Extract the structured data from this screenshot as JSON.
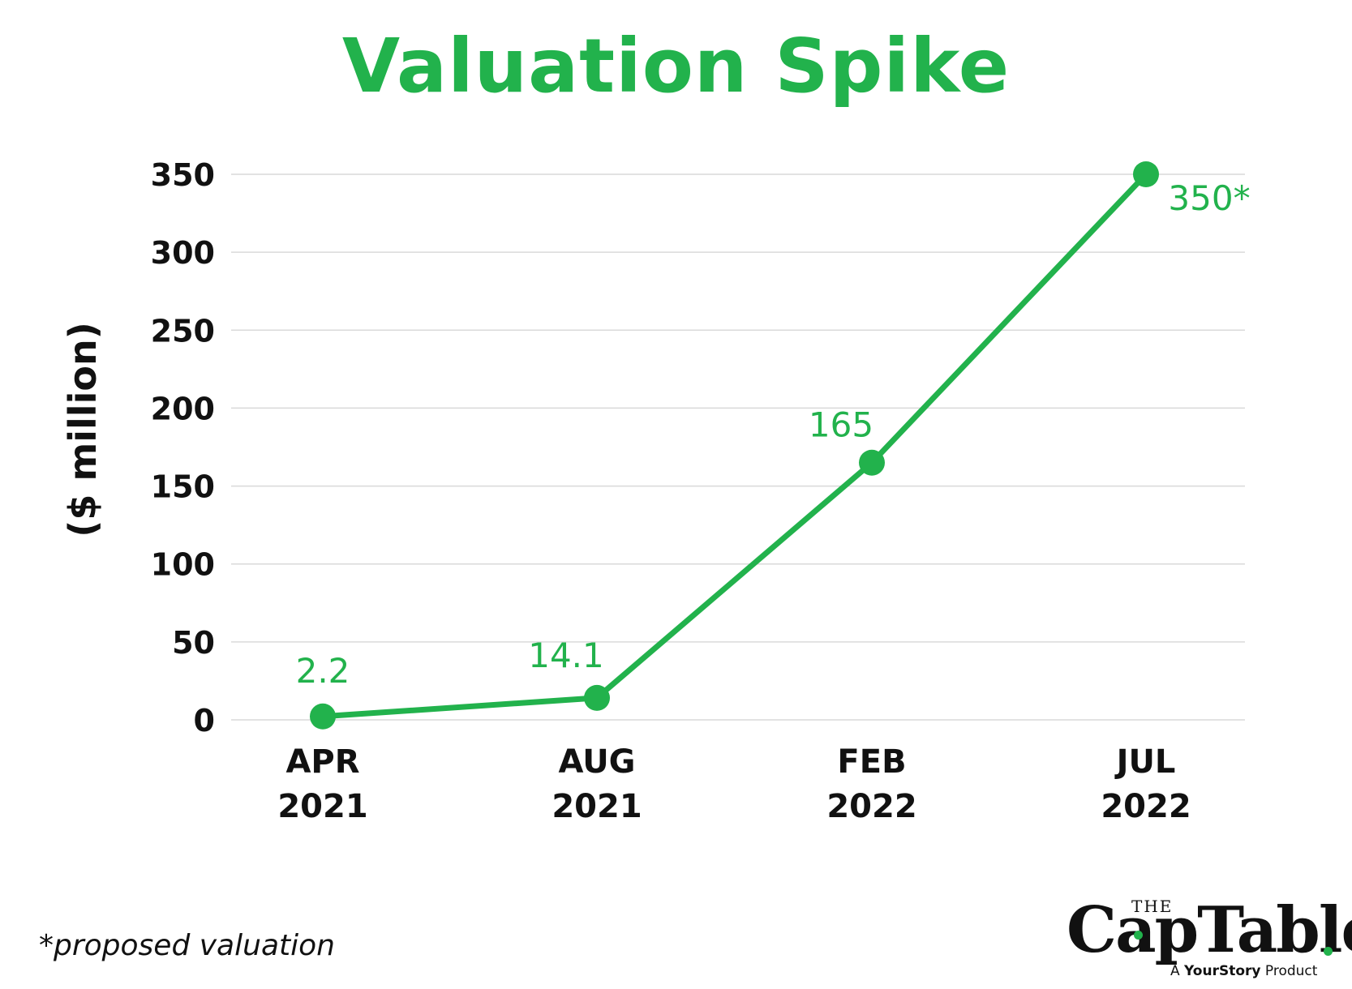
{
  "chart_data": {
    "type": "line",
    "title": "Valuation Spike",
    "ylabel": "($ million)",
    "xlabel": "",
    "categories": [
      [
        "APR",
        "2021"
      ],
      [
        "AUG",
        "2021"
      ],
      [
        "FEB",
        "2022"
      ],
      [
        "JUL",
        "2022"
      ]
    ],
    "series": [
      {
        "values": [
          2.2,
          14.1,
          165,
          350
        ],
        "labels": [
          "2.2",
          "14.1",
          "165",
          "350*"
        ],
        "color": "#22b24c"
      }
    ],
    "ylim": [
      0,
      350
    ],
    "yticks": [
      0,
      50,
      100,
      150,
      200,
      250,
      300,
      350
    ],
    "grid": true,
    "legend": "none"
  },
  "footnote": "*proposed valuation",
  "logo": {
    "the": "THE",
    "name": "CapTable",
    "tag_prefix": "A",
    "tag_brand": "YourStory",
    "tag_suffix": "Product"
  }
}
